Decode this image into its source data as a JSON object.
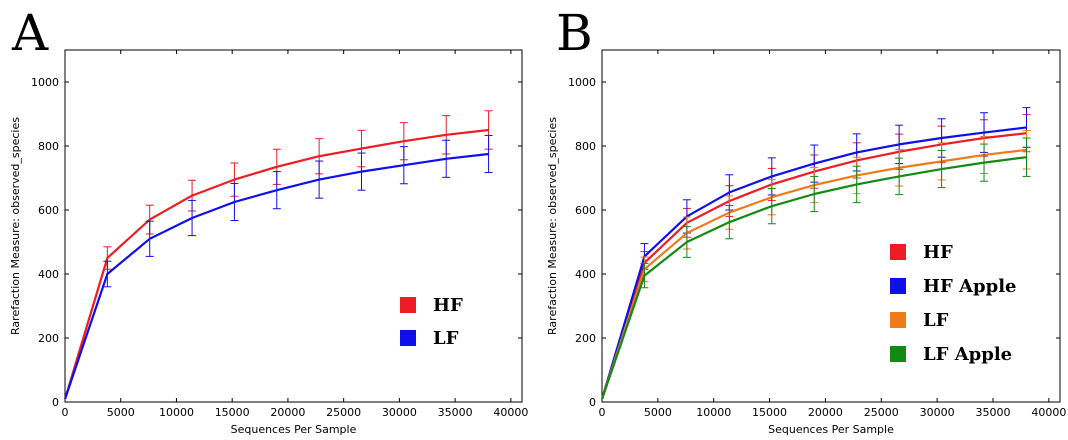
{
  "panels": [
    {
      "letter": "A",
      "legend_items": [
        {
          "label": "HF",
          "color": "#ee1c24"
        },
        {
          "label": "LF",
          "color": "#0f0fee"
        }
      ]
    },
    {
      "letter": "B",
      "legend_items": [
        {
          "label": "HF",
          "color": "#ee1c24"
        },
        {
          "label": "HF Apple",
          "color": "#0f0fee"
        },
        {
          "label": "LF",
          "color": "#f07a1a"
        },
        {
          "label": "LF Apple",
          "color": "#138a13"
        }
      ]
    }
  ],
  "chart_data": [
    {
      "type": "line",
      "panel": "A",
      "xlabel": "Sequences Per Sample",
      "ylabel": "Rarefaction Measure: observed_species",
      "xlim": [
        0,
        41000
      ],
      "ylim": [
        0,
        1100
      ],
      "xticks": [
        0,
        5000,
        10000,
        15000,
        20000,
        25000,
        30000,
        35000,
        40000
      ],
      "yticks": [
        0,
        200,
        400,
        600,
        800,
        1000
      ],
      "grid": false,
      "legend_position": "bottom-right",
      "x": [
        10,
        3800,
        7600,
        11400,
        15200,
        19000,
        22800,
        26600,
        30400,
        34200,
        38000
      ],
      "series": [
        {
          "name": "HF",
          "color": "#ee1c24",
          "values": [
            10,
            450,
            570,
            645,
            695,
            735,
            768,
            792,
            815,
            835,
            850
          ],
          "errors": [
            0,
            35,
            45,
            48,
            52,
            55,
            55,
            57,
            58,
            60,
            60
          ]
        },
        {
          "name": "LF",
          "color": "#0f0fee",
          "values": [
            10,
            400,
            510,
            575,
            625,
            662,
            695,
            720,
            740,
            760,
            775
          ],
          "errors": [
            0,
            40,
            55,
            55,
            58,
            58,
            58,
            58,
            58,
            58,
            58
          ]
        }
      ]
    },
    {
      "type": "line",
      "panel": "B",
      "xlabel": "Sequences Per Sample",
      "ylabel": "Rarefaction Measure: observed_species",
      "xlim": [
        0,
        41000
      ],
      "ylim": [
        0,
        1100
      ],
      "xticks": [
        0,
        5000,
        10000,
        15000,
        20000,
        25000,
        30000,
        35000,
        40000
      ],
      "yticks": [
        0,
        200,
        400,
        600,
        800,
        1000
      ],
      "grid": false,
      "legend_position": "bottom-right",
      "x": [
        10,
        3800,
        7600,
        11400,
        15200,
        19000,
        22800,
        26600,
        30400,
        34200,
        38000
      ],
      "series": [
        {
          "name": "HF",
          "color": "#ee1c24",
          "values": [
            10,
            435,
            560,
            628,
            680,
            720,
            755,
            782,
            805,
            825,
            840
          ],
          "errors": [
            0,
            35,
            45,
            48,
            50,
            52,
            55,
            55,
            57,
            57,
            58
          ]
        },
        {
          "name": "HF Apple",
          "color": "#0f0fee",
          "values": [
            10,
            455,
            580,
            655,
            705,
            745,
            780,
            805,
            825,
            842,
            858
          ],
          "errors": [
            0,
            40,
            52,
            55,
            58,
            58,
            58,
            60,
            60,
            62,
            62
          ]
        },
        {
          "name": "LF",
          "color": "#f07a1a",
          "values": [
            10,
            415,
            528,
            592,
            640,
            678,
            708,
            732,
            752,
            772,
            788
          ],
          "errors": [
            0,
            38,
            50,
            52,
            55,
            55,
            57,
            57,
            58,
            58,
            60
          ]
        },
        {
          "name": "LF Apple",
          "color": "#138a13",
          "values": [
            10,
            395,
            500,
            562,
            612,
            650,
            680,
            705,
            728,
            748,
            765
          ],
          "errors": [
            0,
            38,
            48,
            52,
            55,
            55,
            57,
            57,
            58,
            58,
            60
          ]
        }
      ]
    }
  ]
}
